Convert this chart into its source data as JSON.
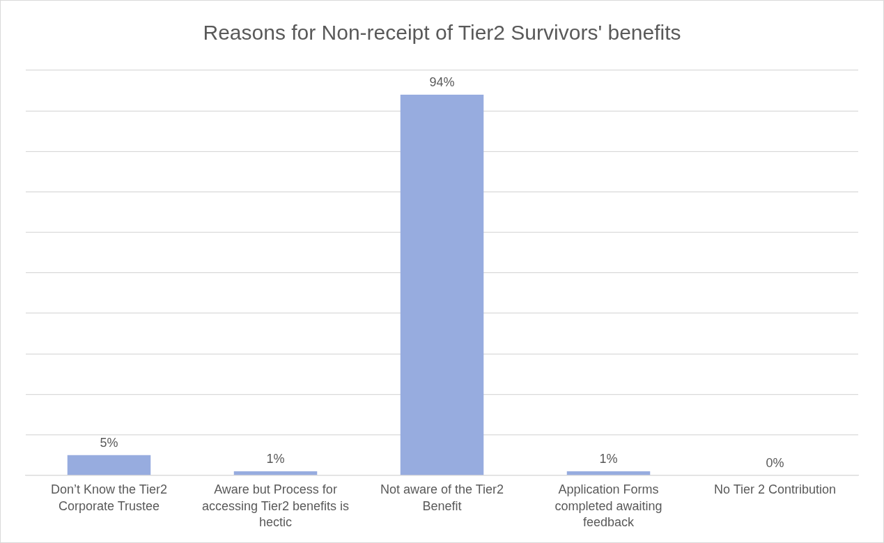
{
  "chart_data": {
    "type": "bar",
    "title": "Reasons for Non-receipt of Tier2 Survivors' benefits",
    "categories": [
      "Don’t Know the Tier2 Corporate Trustee",
      "Aware but Process for accessing Tier2 benefits is hectic",
      "Not aware of the Tier2 Benefit",
      "Application Forms completed awaiting feedback",
      "No Tier 2 Contribution"
    ],
    "values": [
      5,
      1,
      94,
      1,
      0
    ],
    "value_labels": [
      "5%",
      "1%",
      "94%",
      "1%",
      "0%"
    ],
    "color": "#97acdf",
    "tick_labels": "x",
    "grid": "y"
  }
}
